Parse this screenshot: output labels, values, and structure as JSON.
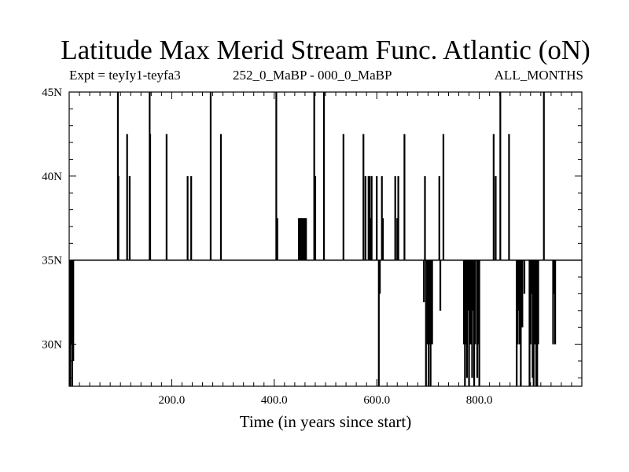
{
  "chart_data": {
    "type": "line",
    "title": "Latitude Max Merid Stream Func. Atlantic (oN)",
    "subtitle_left": "Expt = teyIy1-teyfa3",
    "subtitle_center": "252_0_MaBP - 000_0_MaBP",
    "subtitle_right": "ALL_MONTHS",
    "xlabel": "Time (in years since start)",
    "ylabel": "",
    "xlim": [
      0,
      1000
    ],
    "ylim": [
      27.5,
      45
    ],
    "x_ticks": [
      200,
      400,
      600,
      800
    ],
    "x_tick_labels": [
      "200.0",
      "400.0",
      "600.0",
      "800.0"
    ],
    "y_ticks": [
      30,
      35,
      40,
      45
    ],
    "y_tick_labels": [
      "30N",
      "35N",
      "40N",
      "45N"
    ],
    "baseline": 35,
    "grid": false,
    "series": [
      {
        "name": "",
        "excursions": [
          [
            2,
            27.5
          ],
          [
            4,
            30
          ],
          [
            6,
            27.5
          ],
          [
            7,
            32
          ],
          [
            8,
            29
          ],
          [
            9,
            35
          ],
          [
            95,
            45
          ],
          [
            96,
            40
          ],
          [
            113,
            42.5
          ],
          [
            118,
            40
          ],
          [
            157,
            45
          ],
          [
            158,
            42.5
          ],
          [
            190,
            42.5
          ],
          [
            231,
            40
          ],
          [
            238,
            40
          ],
          [
            276,
            45
          ],
          [
            296,
            42.5
          ],
          [
            404,
            45
          ],
          [
            406,
            37.5
          ],
          [
            448,
            37.5
          ],
          [
            450,
            37.5
          ],
          [
            452,
            37.5
          ],
          [
            454,
            37.5
          ],
          [
            456,
            37.5
          ],
          [
            458,
            37.5
          ],
          [
            460,
            37.5
          ],
          [
            462,
            37.5
          ],
          [
            478,
            45
          ],
          [
            480,
            40
          ],
          [
            497,
            45
          ],
          [
            535,
            42.5
          ],
          [
            574,
            42.5
          ],
          [
            578,
            40
          ],
          [
            584,
            40
          ],
          [
            586,
            40
          ],
          [
            588,
            37.5
          ],
          [
            590,
            40
          ],
          [
            600,
            40
          ],
          [
            604,
            27.5
          ],
          [
            606,
            33
          ],
          [
            610,
            40
          ],
          [
            612,
            37.5
          ],
          [
            636,
            40
          ],
          [
            640,
            37.5
          ],
          [
            642,
            40
          ],
          [
            654,
            42.5
          ],
          [
            692,
            32.5
          ],
          [
            694,
            40
          ],
          [
            696,
            27.5
          ],
          [
            699,
            30
          ],
          [
            701,
            27.5
          ],
          [
            703,
            30
          ],
          [
            705,
            27.5
          ],
          [
            708,
            30
          ],
          [
            722,
            40
          ],
          [
            724,
            32
          ],
          [
            730,
            42.5
          ],
          [
            770,
            30
          ],
          [
            772,
            27.5
          ],
          [
            774,
            30
          ],
          [
            776,
            28
          ],
          [
            778,
            32
          ],
          [
            780,
            27.5
          ],
          [
            782,
            30
          ],
          [
            784,
            30
          ],
          [
            786,
            28
          ],
          [
            788,
            32
          ],
          [
            790,
            27.5
          ],
          [
            792,
            30
          ],
          [
            796,
            28
          ],
          [
            798,
            30
          ],
          [
            800,
            27.5
          ],
          [
            828,
            42.5
          ],
          [
            832,
            40
          ],
          [
            841,
            45
          ],
          [
            858,
            42.5
          ],
          [
            873,
            27.5
          ],
          [
            875,
            30
          ],
          [
            877,
            32
          ],
          [
            879,
            30
          ],
          [
            881,
            27.5
          ],
          [
            884,
            31
          ],
          [
            888,
            33
          ],
          [
            892,
            35
          ],
          [
            898,
            27.5
          ],
          [
            900,
            30
          ],
          [
            902,
            33
          ],
          [
            904,
            28
          ],
          [
            906,
            27.5
          ],
          [
            908,
            30
          ],
          [
            911,
            27.5
          ],
          [
            913,
            27.5
          ],
          [
            915,
            30
          ],
          [
            917,
            35
          ],
          [
            926,
            45
          ],
          [
            944,
            30
          ],
          [
            946,
            33
          ],
          [
            948,
            30
          ]
        ]
      }
    ]
  }
}
